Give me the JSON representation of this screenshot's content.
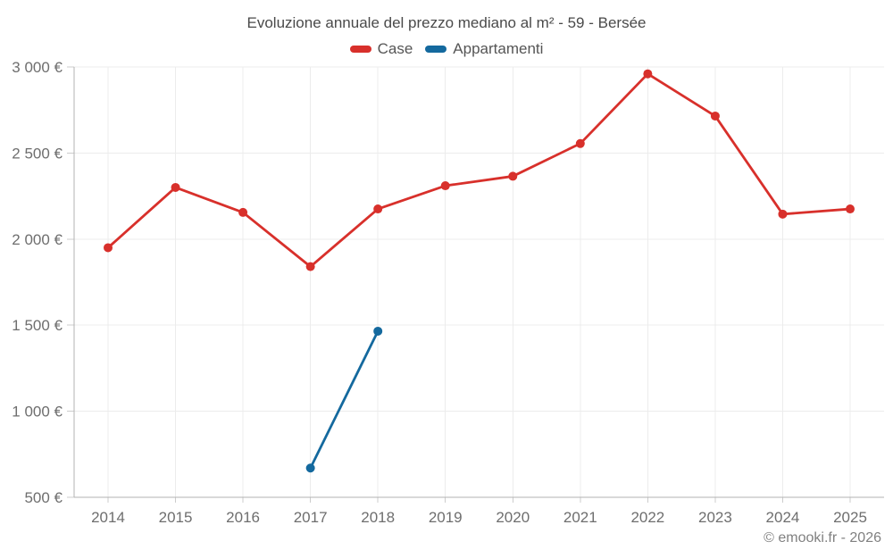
{
  "page": {
    "copyright": "© emooki.fr - 2026"
  },
  "colors": {
    "background": "#ffffff",
    "case_red": "#d8302b",
    "appartamenti_blue": "#14699e",
    "grid": "#ececec",
    "axis": "#b3b3b3",
    "tick": "#cccccc",
    "title_text": "#4a4a4a",
    "legend_text": "#555555",
    "axis_label_text": "#6e6e6e",
    "copyright_text": "#808080"
  },
  "chart_data": {
    "type": "line",
    "title": "Evoluzione annuale del prezzo mediano al m² - 59 - Bersée",
    "xlabel": "",
    "ylabel": "",
    "categories": [
      "2014",
      "2015",
      "2016",
      "2017",
      "2018",
      "2019",
      "2020",
      "2021",
      "2022",
      "2023",
      "2024",
      "2025"
    ],
    "series": [
      {
        "name": "Case",
        "color": "#d8302b",
        "values": [
          1950,
          2300,
          2155,
          1840,
          2175,
          2310,
          2365,
          2555,
          2960,
          2715,
          2145,
          2175
        ]
      },
      {
        "name": "Appartamenti",
        "color": "#14699e",
        "values": [
          null,
          null,
          null,
          670,
          1465,
          null,
          null,
          null,
          null,
          null,
          null,
          null
        ]
      }
    ],
    "ylim": [
      500,
      3000
    ],
    "y_ticks": {
      "values": [
        500,
        1000,
        1500,
        2000,
        2500,
        3000
      ],
      "labels": [
        "500 €",
        "1 000 €",
        "1 500 €",
        "2 000 €",
        "2 500 €",
        "3 000 €"
      ]
    },
    "grid": true,
    "legend_position": "top-center"
  }
}
